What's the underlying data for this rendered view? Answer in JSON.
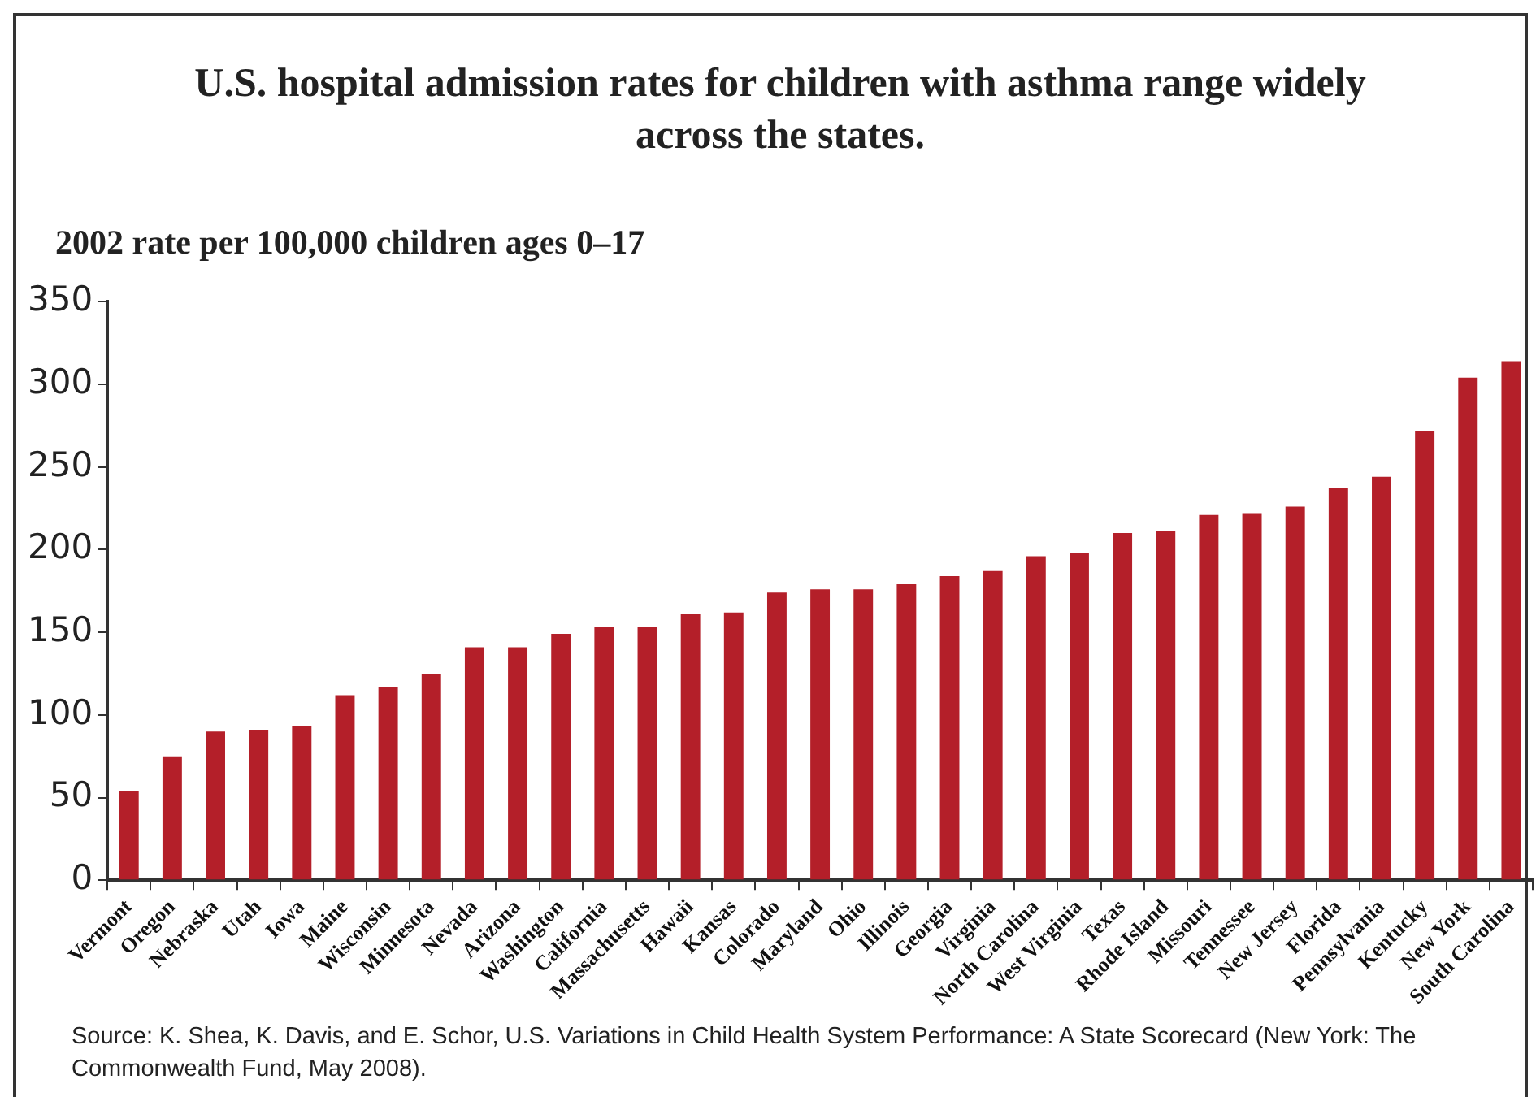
{
  "chart_data": {
    "type": "bar",
    "title": "U.S. hospital admission rates for children with asthma range widely across the states.",
    "ylabel": "2002 rate per 100,000 children ages 0–17",
    "categories": [
      "Vermont",
      "Oregon",
      "Nebraska",
      "Utah",
      "Iowa",
      "Maine",
      "Wisconsin",
      "Minnesota",
      "Nevada",
      "Arizona",
      "Washington",
      "California",
      "Massachusetts",
      "Hawaii",
      "Kansas",
      "Colorado",
      "Maryland",
      "Ohio",
      "Illinois",
      "Georgia",
      "Virginia",
      "North Carolina",
      "West Virginia",
      "Texas",
      "Rhode Island",
      "Missouri",
      "Tennessee",
      "New Jersey",
      "Florida",
      "Pennsylvania",
      "Kentucky",
      "New York",
      "South Carolina"
    ],
    "values": [
      54,
      75,
      90,
      91,
      93,
      112,
      117,
      125,
      141,
      141,
      149,
      153,
      153,
      161,
      162,
      174,
      176,
      176,
      179,
      184,
      187,
      196,
      198,
      210,
      211,
      221,
      222,
      226,
      237,
      244,
      272,
      304,
      314
    ],
    "color": "#b41f29",
    "ylim": [
      0,
      350
    ],
    "yticks": [
      0,
      50,
      100,
      150,
      200,
      250,
      300,
      350
    ],
    "grid": false,
    "legend": false,
    "annotations": [
      "Source: K. Shea, K. Davis, and E. Schor, U.S. Variations in Child Health System Performance: A State Scorecard (New York: The Commonwealth Fund, May 2008)."
    ]
  }
}
